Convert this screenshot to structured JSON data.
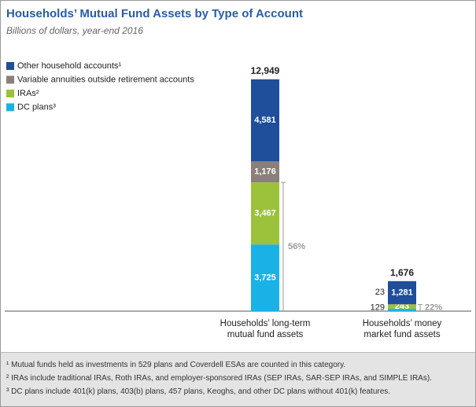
{
  "chart_data": {
    "type": "stacked_bar",
    "title": "Households’ Mutual Fund Assets by Type of Account",
    "subtitle": "Billions of dollars, year-end 2016",
    "categories": [
      "Households’ long-term mutual fund assets",
      "Households’ money market fund assets"
    ],
    "series": [
      {
        "name": "DC plans³",
        "color": "#1ab2e6",
        "values": [
          3725,
          129
        ],
        "value_labels": [
          "3,725",
          "129"
        ]
      },
      {
        "name": "IRAs²",
        "color": "#9cc23c",
        "values": [
          3467,
          243
        ],
        "value_labels": [
          "3,467",
          "243"
        ]
      },
      {
        "name": "Variable annuities outside retirement accounts",
        "color": "#8a8079",
        "values": [
          1176,
          23
        ],
        "value_labels": [
          "1,176",
          "23"
        ]
      },
      {
        "name": "Other household accounts¹",
        "color": "#1f4e9b",
        "values": [
          4581,
          1281
        ],
        "value_labels": [
          "4,581",
          "1,281"
        ]
      }
    ],
    "totals": [
      12949,
      1676
    ],
    "total_labels": [
      "12,949",
      "1,676"
    ],
    "annotations": [
      "56%",
      "22%"
    ],
    "footnotes": [
      "¹ Mutual funds held as investments in 529 plans and Coverdell ESAs are counted in this category.",
      "² IRAs include traditional IRAs, Roth IRAs, and employer-sponsored IRAs (SEP IRAs, SAR-SEP IRAs, and SIMPLE IRAs).",
      "³ DC plans include 401(k) plans, 403(b) plans, 457 plans, Keoghs, and other DC plans without 401(k) features."
    ]
  }
}
